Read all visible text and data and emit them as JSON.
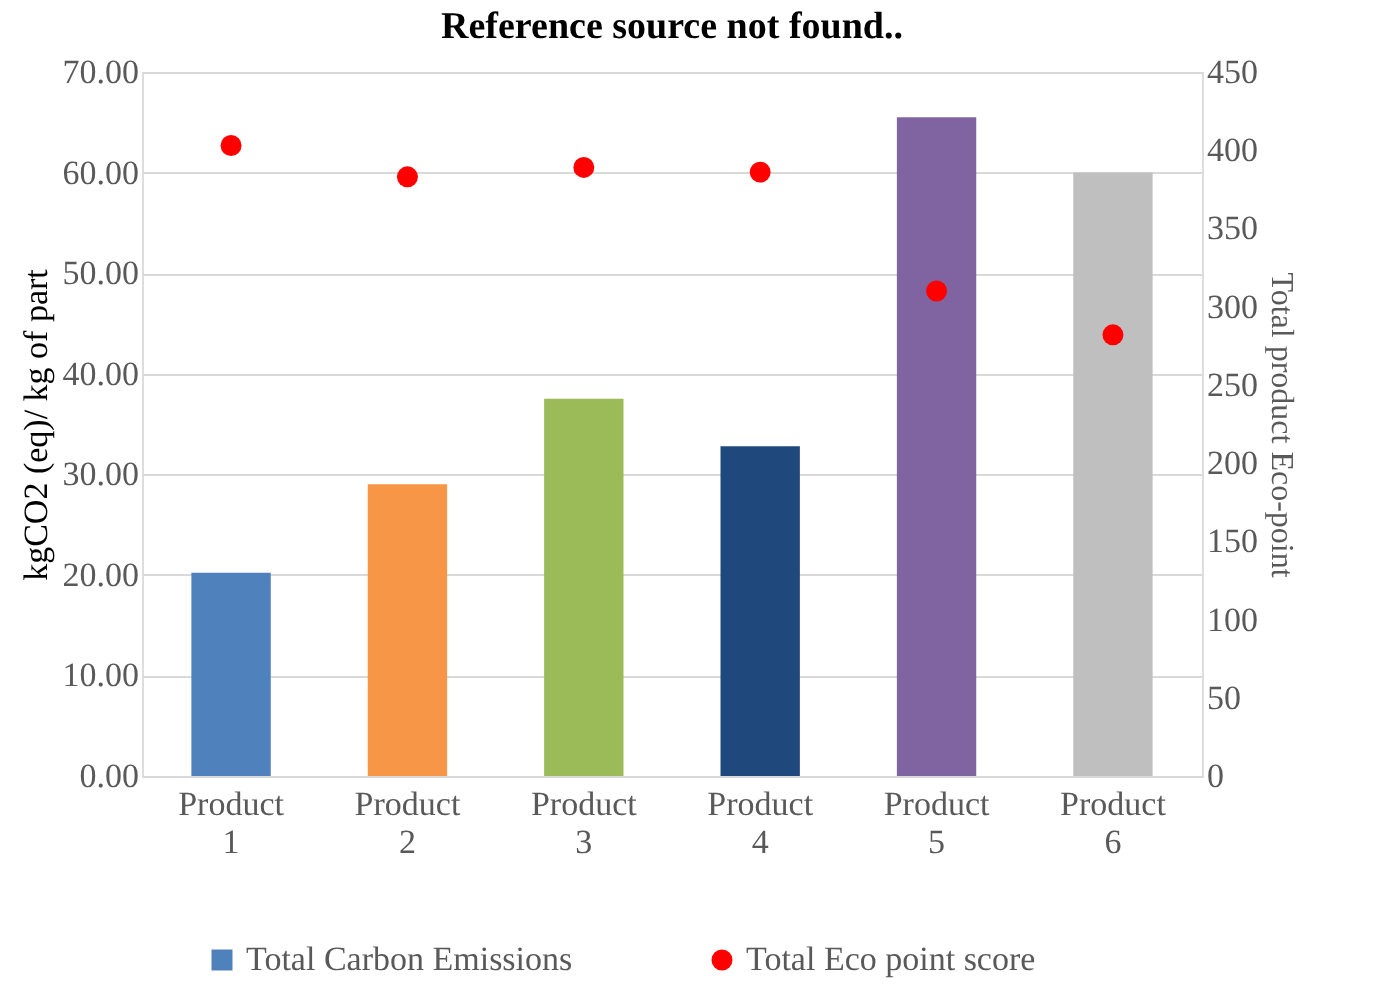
{
  "chart_data": {
    "type": "bar",
    "title": "Reference source not found..",
    "categories": [
      "Product 1",
      "Product 2",
      "Product 3",
      "Product 4",
      "Product 5",
      "Product 6"
    ],
    "ylabel": "kgCO2 (eq)/ kg of part",
    "y2label": "Total product Eco-point",
    "ylim": [
      0,
      70
    ],
    "yticks": [
      {
        "value": 0,
        "label": "0.00"
      },
      {
        "value": 10,
        "label": "10.00"
      },
      {
        "value": 20,
        "label": "20.00"
      },
      {
        "value": 30,
        "label": "30.00"
      },
      {
        "value": 40,
        "label": "40.00"
      },
      {
        "value": 50,
        "label": "50.00"
      },
      {
        "value": 60,
        "label": "60.00"
      },
      {
        "value": 70,
        "label": "70.00"
      }
    ],
    "y2lim": [
      0,
      450
    ],
    "y2ticks": [
      0,
      50,
      100,
      150,
      200,
      250,
      300,
      350,
      400,
      450
    ],
    "grid": "y",
    "legend": "bottom",
    "series": [
      {
        "name": "Total Carbon Emissions",
        "color": "#4f81bd",
        "colors": [
          "#4f81bd",
          "#f79646",
          "#9bbb59",
          "#1f497d",
          "#8064a2",
          "#bfbfbf"
        ],
        "values": [
          20.2,
          29.0,
          37.5,
          32.8,
          65.5,
          60.0
        ]
      },
      {
        "name": "Total Eco point score",
        "type": "scatter",
        "axis": "y2",
        "marker": "circle",
        "color": "#ff0000",
        "values": [
          403,
          383,
          389,
          386,
          310,
          282
        ]
      }
    ]
  }
}
